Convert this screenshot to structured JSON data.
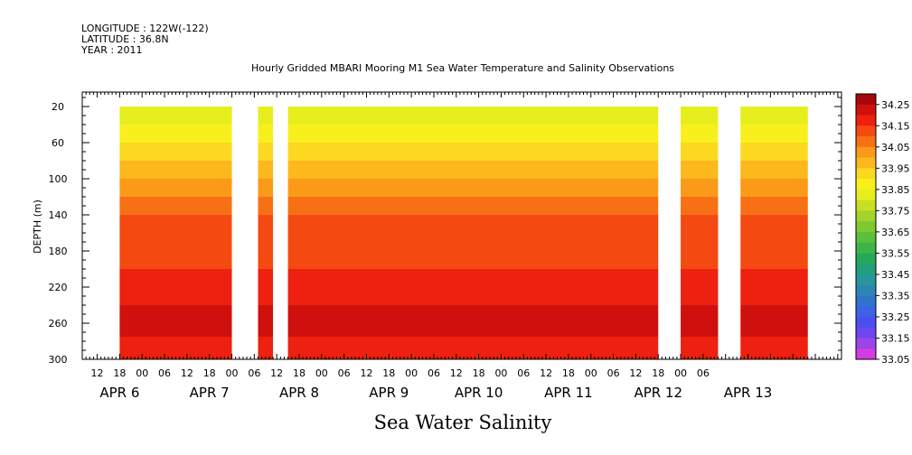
{
  "header": {
    "longitude": "LONGITUDE : 122W(-122)",
    "latitude": "LATITUDE : 36.8N",
    "year": "YEAR : 2011"
  },
  "chart_data": {
    "type": "heatmap",
    "title": "Hourly Gridded MBARI Mooring M1 Sea Water Temperature and Salinity Observations",
    "xlabel": "Sea Water Salinity",
    "ylabel": "DEPTH (m)",
    "y_ticks": [
      20,
      60,
      100,
      140,
      180,
      220,
      260,
      300
    ],
    "ylim": [
      300,
      4
    ],
    "y_inverted": true,
    "xlim": [
      "2011-04-05T08:00",
      "2011-04-13T19:00"
    ],
    "x_hour_ticks": [
      {
        "t": "2011-04-05T12:00",
        "label": "12"
      },
      {
        "t": "2011-04-05T18:00",
        "label": "18"
      },
      {
        "t": "2011-04-06T00:00",
        "label": "00"
      },
      {
        "t": "2011-04-06T06:00",
        "label": "06"
      },
      {
        "t": "2011-04-06T12:00",
        "label": "12"
      },
      {
        "t": "2011-04-06T18:00",
        "label": "18"
      },
      {
        "t": "2011-04-07T00:00",
        "label": "00"
      },
      {
        "t": "2011-04-07T06:00",
        "label": "06"
      },
      {
        "t": "2011-04-07T12:00",
        "label": "12"
      },
      {
        "t": "2011-04-07T18:00",
        "label": "18"
      },
      {
        "t": "2011-04-08T00:00",
        "label": "00"
      },
      {
        "t": "2011-04-08T06:00",
        "label": "06"
      },
      {
        "t": "2011-04-08T12:00",
        "label": "12"
      },
      {
        "t": "2011-04-08T18:00",
        "label": "18"
      },
      {
        "t": "2011-04-09T00:00",
        "label": "00"
      },
      {
        "t": "2011-04-09T06:00",
        "label": "06"
      },
      {
        "t": "2011-04-09T12:00",
        "label": "12"
      },
      {
        "t": "2011-04-09T18:00",
        "label": "18"
      },
      {
        "t": "2011-04-10T00:00",
        "label": "00"
      },
      {
        "t": "2011-04-10T06:00",
        "label": "06"
      },
      {
        "t": "2011-04-10T12:00",
        "label": "12"
      },
      {
        "t": "2011-04-10T18:00",
        "label": "18"
      },
      {
        "t": "2011-04-11T00:00",
        "label": "00"
      },
      {
        "t": "2011-04-11T06:00",
        "label": "06"
      },
      {
        "t": "2011-04-11T12:00",
        "label": "12"
      },
      {
        "t": "2011-04-11T18:00",
        "label": "18"
      },
      {
        "t": "2011-04-12T00:00",
        "label": "00"
      },
      {
        "t": "2011-04-12T06:00",
        "label": "06"
      }
    ],
    "x_date_labels": [
      {
        "t": "2011-04-05T18:00",
        "label": "APR  6"
      },
      {
        "t": "2011-04-06T18:00",
        "label": "APR  7"
      },
      {
        "t": "2011-04-07T18:00",
        "label": "APR  8"
      },
      {
        "t": "2011-04-08T18:00",
        "label": "APR  9"
      },
      {
        "t": "2011-04-09T18:00",
        "label": "APR 10"
      },
      {
        "t": "2011-04-10T18:00",
        "label": "APR 11"
      },
      {
        "t": "2011-04-11T18:00",
        "label": "APR 12"
      },
      {
        "t": "2011-04-12T18:00",
        "label": "APR 13"
      }
    ],
    "data_depth_range": [
      20,
      300
    ],
    "data_segments": [
      {
        "start": "2011-04-05T18:00",
        "end": "2011-04-07T00:00"
      },
      {
        "start": "2011-04-07T07:00",
        "end": "2011-04-07T11:00"
      },
      {
        "start": "2011-04-07T15:00",
        "end": "2011-04-11T18:00"
      },
      {
        "start": "2011-04-12T00:00",
        "end": "2011-04-12T10:00"
      },
      {
        "start": "2011-04-12T16:00",
        "end": "2011-04-13T10:00"
      }
    ],
    "salinity_profile": [
      {
        "depth": 20,
        "salinity": 33.75
      },
      {
        "depth": 40,
        "salinity": 33.85
      },
      {
        "depth": 60,
        "salinity": 33.92
      },
      {
        "depth": 80,
        "salinity": 33.97
      },
      {
        "depth": 100,
        "salinity": 34.02
      },
      {
        "depth": 120,
        "salinity": 34.07
      },
      {
        "depth": 140,
        "salinity": 34.11
      },
      {
        "depth": 160,
        "salinity": 34.13
      },
      {
        "depth": 200,
        "salinity": 34.16
      },
      {
        "depth": 220,
        "salinity": 34.18
      },
      {
        "depth": 240,
        "salinity": 34.21
      },
      {
        "depth": 255,
        "salinity": 34.23
      },
      {
        "depth": 275,
        "salinity": 34.19
      },
      {
        "depth": 300,
        "salinity": 34.17
      }
    ],
    "colorbar": {
      "ticks": [
        "34.25",
        "34.15",
        "34.05",
        "33.95",
        "33.85",
        "33.75",
        "33.65",
        "33.55",
        "33.45",
        "33.35",
        "33.25",
        "33.15",
        "33.05"
      ],
      "bands": [
        {
          "min": 33.05,
          "max": 33.1,
          "color": "#d23ce0"
        },
        {
          "min": 33.1,
          "max": 33.15,
          "color": "#9b44e8"
        },
        {
          "min": 33.15,
          "max": 33.2,
          "color": "#6f46f0"
        },
        {
          "min": 33.2,
          "max": 33.25,
          "color": "#4a50f0"
        },
        {
          "min": 33.25,
          "max": 33.3,
          "color": "#3a63e6"
        },
        {
          "min": 33.3,
          "max": 33.35,
          "color": "#2f74cc"
        },
        {
          "min": 33.35,
          "max": 33.4,
          "color": "#2c86b4"
        },
        {
          "min": 33.4,
          "max": 33.45,
          "color": "#26969a"
        },
        {
          "min": 33.45,
          "max": 33.5,
          "color": "#20a07c"
        },
        {
          "min": 33.5,
          "max": 33.55,
          "color": "#26a85a"
        },
        {
          "min": 33.55,
          "max": 33.6,
          "color": "#3cb448"
        },
        {
          "min": 33.6,
          "max": 33.65,
          "color": "#5cbf3c"
        },
        {
          "min": 33.65,
          "max": 33.7,
          "color": "#80c832"
        },
        {
          "min": 33.7,
          "max": 33.75,
          "color": "#a4d42a"
        },
        {
          "min": 33.75,
          "max": 33.8,
          "color": "#c8e024"
        },
        {
          "min": 33.8,
          "max": 33.85,
          "color": "#e6ee1e"
        },
        {
          "min": 33.85,
          "max": 33.9,
          "color": "#f8f01c"
        },
        {
          "min": 33.9,
          "max": 33.95,
          "color": "#fcd820"
        },
        {
          "min": 33.95,
          "max": 34.0,
          "color": "#fcb81c"
        },
        {
          "min": 34.0,
          "max": 34.05,
          "color": "#fa9a18"
        },
        {
          "min": 34.05,
          "max": 34.1,
          "color": "#f87014"
        },
        {
          "min": 34.1,
          "max": 34.15,
          "color": "#f44a12"
        },
        {
          "min": 34.15,
          "max": 34.2,
          "color": "#ee2010"
        },
        {
          "min": 34.2,
          "max": 34.25,
          "color": "#d0100c"
        },
        {
          "min": 34.25,
          "max": 34.3,
          "color": "#a50808"
        }
      ]
    }
  }
}
